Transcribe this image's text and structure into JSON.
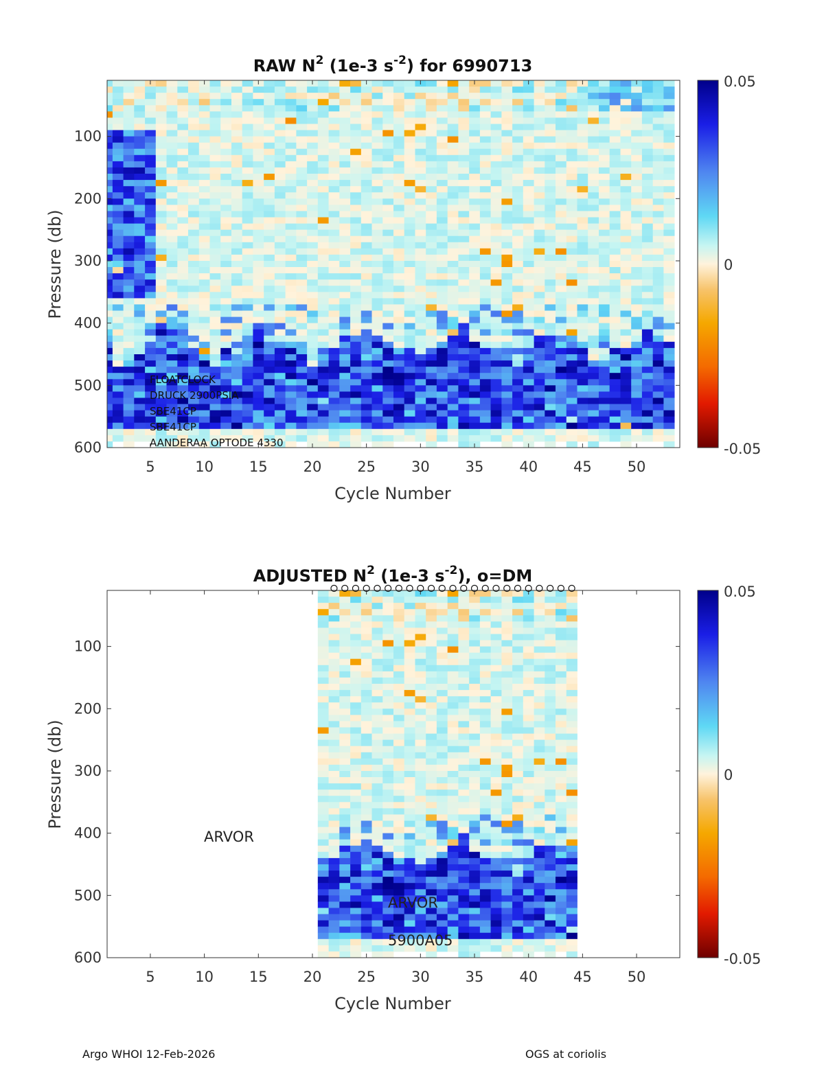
{
  "chart_data": [
    {
      "type": "heatmap",
      "title": "RAW N",
      "title_sup": "2",
      "title_units_pre": " (1e-3 s",
      "title_units_sup": "-2",
      "title_tail": ") for 6990713",
      "xlabel": "Cycle Number",
      "ylabel": "Pressure (db)",
      "xlim": [
        1,
        54
      ],
      "ylim": [
        10,
        600
      ],
      "y_reversed": true,
      "xticks": [
        5,
        10,
        15,
        20,
        25,
        30,
        35,
        40,
        45,
        50
      ],
      "yticks": [
        100,
        200,
        300,
        400,
        500,
        600
      ],
      "cycles": [
        1,
        53
      ],
      "colorbar": {
        "min": -0.05,
        "max": 0.05,
        "ticks": [
          "0.05",
          "0",
          "-0.05"
        ],
        "colormap": "blue-cyan-white-orange-red"
      },
      "annotations": [
        "FLOATCLOCK",
        "DRUCK 2900PSIA",
        "SBE41CP",
        "SBE41CP",
        "AANDERAA OPTODE 4330"
      ],
      "mean_profile_note": "Strongly positive N2 (~0.03-0.05) between 430 and 560 db for most cycles; near-zero elsewhere; strong positive 150-350 db for cycles 1-5"
    },
    {
      "type": "heatmap",
      "title": "ADJUSTED N",
      "title_sup": "2",
      "title_units_pre": " (1e-3 s",
      "title_units_sup": "-2",
      "title_tail": "), o=DM",
      "xlabel": "Cycle Number",
      "ylabel": "Pressure (db)",
      "xlim": [
        1,
        54
      ],
      "ylim": [
        10,
        600
      ],
      "y_reversed": true,
      "xticks": [
        5,
        10,
        15,
        20,
        25,
        30,
        35,
        40,
        45,
        50
      ],
      "yticks": [
        100,
        200,
        300,
        400,
        500,
        600
      ],
      "cycles": [
        21,
        44
      ],
      "dm_marker": "o",
      "colorbar": {
        "min": -0.05,
        "max": 0.05,
        "ticks": [
          "0.05",
          "0",
          "-0.05"
        ],
        "colormap": "blue-cyan-white-orange-red"
      },
      "annotations": [
        "ARVOR",
        "ARVOR",
        "5900A05"
      ]
    }
  ],
  "footer": {
    "left": "Argo WHOI 12-Feb-2026",
    "right": "OGS at coriolis"
  }
}
